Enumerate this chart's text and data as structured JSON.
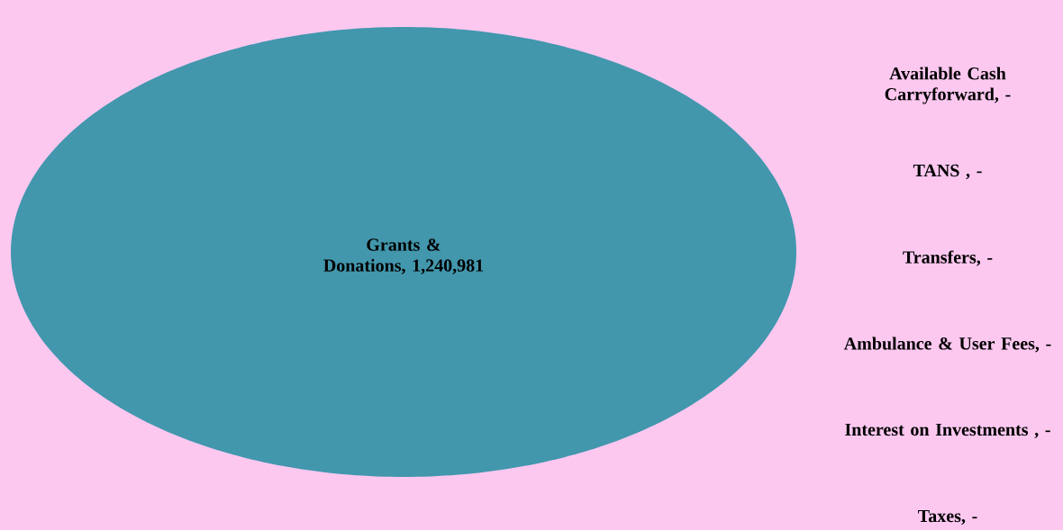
{
  "chart_data": {
    "type": "pie",
    "categories": [
      "Grants & Donations",
      "Available Cash Carryforward",
      "TANS",
      "Transfers",
      "Ambulance & User Fees",
      "Interest on Investments",
      "Taxes"
    ],
    "values": [
      1240981,
      0,
      0,
      0,
      0,
      0,
      0
    ],
    "value_labels": [
      ", 1,240,981",
      ",  -",
      " ,  -",
      ",  -",
      ",  -",
      " ,  -",
      ",  -"
    ],
    "colors": [
      "#4297ad",
      "#9999ff",
      "#993366",
      "#ffffcc",
      "#ccffff",
      "#660066",
      "#ff8080"
    ]
  }
}
